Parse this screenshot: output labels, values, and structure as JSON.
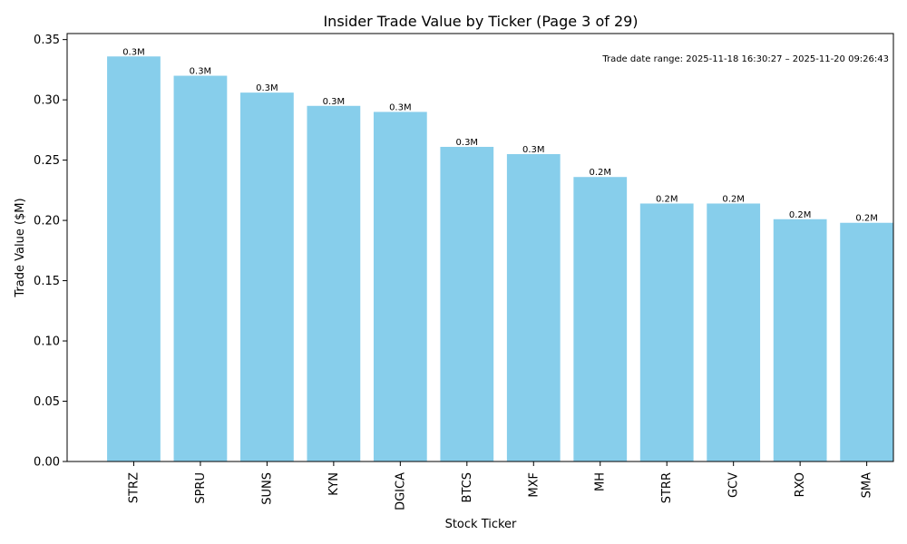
{
  "chart_data": {
    "type": "bar",
    "title": "Insider Trade Value by Ticker (Page 3 of 29)",
    "xlabel": "Stock Ticker",
    "ylabel": "Trade Value ($M)",
    "categories": [
      "STRZ",
      "SPRU",
      "SUNS",
      "KYN",
      "DGICA",
      "BTCS",
      "MXF",
      "MH",
      "STRR",
      "GCV",
      "RXO",
      "SMA"
    ],
    "values": [
      0.336,
      0.32,
      0.306,
      0.295,
      0.29,
      0.261,
      0.255,
      0.236,
      0.214,
      0.214,
      0.201,
      0.198
    ],
    "bar_labels": [
      "0.3M",
      "0.3M",
      "0.3M",
      "0.3M",
      "0.3M",
      "0.3M",
      "0.3M",
      "0.2M",
      "0.2M",
      "0.2M",
      "0.2M",
      "0.2M"
    ],
    "ylim": [
      0,
      0.355
    ],
    "yticks": [
      0.0,
      0.05,
      0.1,
      0.15,
      0.2,
      0.25,
      0.3,
      0.35
    ],
    "ytick_labels": [
      "0.00",
      "0.05",
      "0.10",
      "0.15",
      "0.20",
      "0.25",
      "0.30",
      "0.35"
    ],
    "bar_color": "#87CEEB",
    "annotation": "Trade date range: 2025-11-18 16:30:27 – 2025-11-20 09:26:43",
    "grid": false
  }
}
